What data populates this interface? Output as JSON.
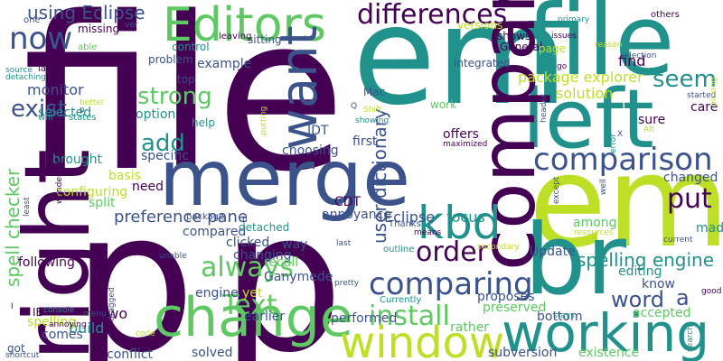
{
  "palette": {
    "purple": "#440154",
    "indigo": "#3b528b",
    "teal": "#21918c",
    "green": "#5ec962",
    "lime": "#bddf26"
  },
  "words": [
    {
      "text": "file",
      "color": "purple"
    },
    {
      "text": "p",
      "color": "purple"
    },
    {
      "text": "p",
      "color": "purple"
    },
    {
      "text": "em",
      "color": "teal"
    },
    {
      "text": "em",
      "color": "lime"
    },
    {
      "text": "file",
      "color": "teal"
    },
    {
      "text": "merge",
      "color": "indigo"
    },
    {
      "text": "br",
      "color": "teal"
    },
    {
      "text": "left",
      "color": "teal"
    },
    {
      "text": "right",
      "color": "purple"
    },
    {
      "text": "compare",
      "color": "purple"
    },
    {
      "text": "change",
      "color": "green"
    },
    {
      "text": "working",
      "color": "teal"
    },
    {
      "text": "window",
      "color": "lime"
    },
    {
      "text": "Editors",
      "color": "green"
    },
    {
      "text": "want",
      "color": "indigo"
    },
    {
      "text": "kbd",
      "color": "teal"
    },
    {
      "text": "comparing",
      "color": "indigo"
    },
    {
      "text": "comparison",
      "color": "indigo"
    },
    {
      "text": "differences",
      "color": "purple"
    },
    {
      "text": "now",
      "color": "indigo"
    },
    {
      "text": "install",
      "color": "green"
    },
    {
      "text": "always",
      "color": "green"
    },
    {
      "text": "order",
      "color": "purple"
    },
    {
      "text": "Text",
      "color": "green"
    },
    {
      "text": "put",
      "color": "purple"
    },
    {
      "text": "seem",
      "color": "teal"
    },
    {
      "text": "strong",
      "color": "green"
    },
    {
      "text": "add",
      "color": "teal"
    },
    {
      "text": "exist",
      "color": "indigo"
    },
    {
      "text": "word",
      "color": "indigo"
    },
    {
      "text": "a",
      "color": "indigo"
    },
    {
      "text": "spell checker",
      "color": "green"
    },
    {
      "text": "user dictionary",
      "color": "indigo"
    },
    {
      "text": "using Eclipse",
      "color": "indigo"
    },
    {
      "text": "spelling engine",
      "color": "teal"
    },
    {
      "text": "preference pane",
      "color": "indigo"
    },
    {
      "text": "package explorer",
      "color": "lime"
    },
    {
      "text": "find",
      "color": "purple"
    },
    {
      "text": "solution",
      "color": "lime"
    },
    {
      "text": "monitor",
      "color": "indigo"
    },
    {
      "text": "selected",
      "color": "teal"
    },
    {
      "text": "option",
      "color": "teal"
    },
    {
      "text": "example",
      "color": "indigo"
    },
    {
      "text": "specific",
      "color": "indigo"
    },
    {
      "text": "brought",
      "color": "teal"
    },
    {
      "text": "configuring",
      "color": "lime"
    },
    {
      "text": "split",
      "color": "green"
    },
    {
      "text": "basis",
      "color": "lime"
    },
    {
      "text": "need",
      "color": "purple"
    },
    {
      "text": "compared",
      "color": "indigo"
    },
    {
      "text": "clicked",
      "color": "indigo"
    },
    {
      "text": "changing",
      "color": "indigo"
    },
    {
      "text": "two",
      "color": "purple"
    },
    {
      "text": "build",
      "color": "teal"
    },
    {
      "text": "conflict",
      "color": "indigo"
    },
    {
      "text": "comes",
      "color": "indigo"
    },
    {
      "text": "spelling",
      "color": "lime"
    },
    {
      "text": "following",
      "color": "purple"
    },
    {
      "text": "focus",
      "color": "teal"
    },
    {
      "text": "Eclipse",
      "color": "indigo"
    },
    {
      "text": "CDT",
      "color": "purple"
    },
    {
      "text": "annoyance",
      "color": "indigo"
    },
    {
      "text": "way",
      "color": "indigo"
    },
    {
      "text": "recall",
      "color": "green"
    },
    {
      "text": "yet",
      "color": "lime"
    },
    {
      "text": "earlier",
      "color": "indigo"
    },
    {
      "text": "engine",
      "color": "indigo"
    },
    {
      "text": "Ganymede",
      "color": "indigo"
    },
    {
      "text": "solved",
      "color": "indigo"
    },
    {
      "text": "performed",
      "color": "indigo"
    },
    {
      "text": "proposes",
      "color": "indigo"
    },
    {
      "text": "preserved",
      "color": "green"
    },
    {
      "text": "rather",
      "color": "green"
    },
    {
      "text": "bottom",
      "color": "indigo"
    },
    {
      "text": "subversion",
      "color": "indigo"
    },
    {
      "text": "existence",
      "color": "green"
    },
    {
      "text": "Update",
      "color": "indigo"
    },
    {
      "text": "among",
      "color": "green"
    },
    {
      "text": "editing",
      "color": "teal"
    },
    {
      "text": "know",
      "color": "indigo"
    },
    {
      "text": "accepted",
      "color": "green"
    },
    {
      "text": "changed",
      "color": "indigo"
    },
    {
      "text": "made",
      "color": "teal"
    },
    {
      "text": "care",
      "color": "purple"
    },
    {
      "text": "sure",
      "color": "purple"
    },
    {
      "text": "offers",
      "color": "purple"
    },
    {
      "text": "first",
      "color": "indigo"
    },
    {
      "text": "choosing",
      "color": "indigo"
    },
    {
      "text": "JDT",
      "color": "indigo"
    },
    {
      "text": "General",
      "color": "purple"
    },
    {
      "text": "page",
      "color": "lime"
    },
    {
      "text": "integrated",
      "color": "indigo"
    },
    {
      "text": "shows",
      "color": "purple"
    },
    {
      "text": "versions",
      "color": "lime"
    },
    {
      "text": "work",
      "color": "green"
    },
    {
      "text": "Mac",
      "color": "indigo"
    },
    {
      "text": "top",
      "color": "indigo"
    },
    {
      "text": "problem",
      "color": "indigo"
    },
    {
      "text": "control",
      "color": "teal"
    },
    {
      "text": "help",
      "color": "teal"
    },
    {
      "text": "sitting",
      "color": "indigo"
    },
    {
      "text": "leaving",
      "color": "purple"
    },
    {
      "text": "diagonally",
      "color": "purple"
    },
    {
      "text": "one",
      "color": "indigo"
    },
    {
      "text": "missing",
      "color": "purple"
    },
    {
      "text": "able",
      "color": "green"
    },
    {
      "text": "latter",
      "color": "purple"
    },
    {
      "text": "detaching",
      "color": "teal"
    },
    {
      "text": "source",
      "color": "teal"
    },
    {
      "text": "will",
      "color": "teal"
    },
    {
      "text": "states",
      "color": "teal"
    },
    {
      "text": "better",
      "color": "lime"
    },
    {
      "text": "ver",
      "color": "indigo"
    },
    {
      "text": "package",
      "color": "indigo"
    },
    {
      "text": "detached",
      "color": "teal"
    },
    {
      "text": "Thanks",
      "color": "indigo"
    },
    {
      "text": "means",
      "color": "purple"
    },
    {
      "text": "last",
      "color": "indigo"
    },
    {
      "text": "pretty",
      "color": "indigo"
    },
    {
      "text": "outline",
      "color": "teal"
    },
    {
      "text": "Currently",
      "color": "teal"
    },
    {
      "text": "secondary",
      "color": "lime"
    },
    {
      "text": "stays",
      "color": "teal"
    },
    {
      "text": "resources",
      "color": "lime"
    },
    {
      "text": "current",
      "color": "indigo"
    },
    {
      "text": "good",
      "color": "purple"
    },
    {
      "text": "started",
      "color": "indigo"
    },
    {
      "text": "picking",
      "color": "lime"
    },
    {
      "text": "selection",
      "color": "indigo"
    },
    {
      "text": "primary",
      "color": "teal"
    },
    {
      "text": "reason",
      "color": "lime"
    },
    {
      "text": "issues",
      "color": "purple"
    },
    {
      "text": "others",
      "color": "purple"
    },
    {
      "text": "maximized",
      "color": "purple"
    },
    {
      "text": "showing",
      "color": "teal"
    },
    {
      "text": "Shift",
      "color": "lime"
    },
    {
      "text": "Alt",
      "color": "lime"
    },
    {
      "text": "error",
      "color": "teal"
    },
    {
      "text": "except",
      "color": "indigo"
    },
    {
      "text": "well",
      "color": "indigo"
    },
    {
      "text": "header",
      "color": "indigo"
    },
    {
      "text": "search",
      "color": "teal"
    },
    {
      "text": "unable",
      "color": "indigo"
    },
    {
      "text": "dragged",
      "color": "indigo"
    },
    {
      "text": "menu",
      "color": "indigo"
    },
    {
      "text": "console",
      "color": "teal"
    },
    {
      "text": "code",
      "color": "lime"
    },
    {
      "text": "shortcut",
      "color": "indigo"
    },
    {
      "text": "got",
      "color": "indigo"
    },
    {
      "text": "annoying",
      "color": "purple"
    },
    {
      "text": "least",
      "color": "indigo"
    },
    {
      "text": "wondering",
      "color": "purple"
    },
    {
      "text": "IE",
      "color": "purple"
    },
    {
      "text": "putting",
      "color": "lime"
    },
    {
      "text": "go",
      "color": "purple"
    },
    {
      "text": "Q",
      "color": "indigo"
    },
    {
      "text": "X",
      "color": "indigo"
    },
    {
      "text": "p",
      "color": "indigo"
    },
    {
      "text": "b",
      "color": "indigo"
    },
    {
      "text": "I",
      "color": "purple"
    }
  ]
}
